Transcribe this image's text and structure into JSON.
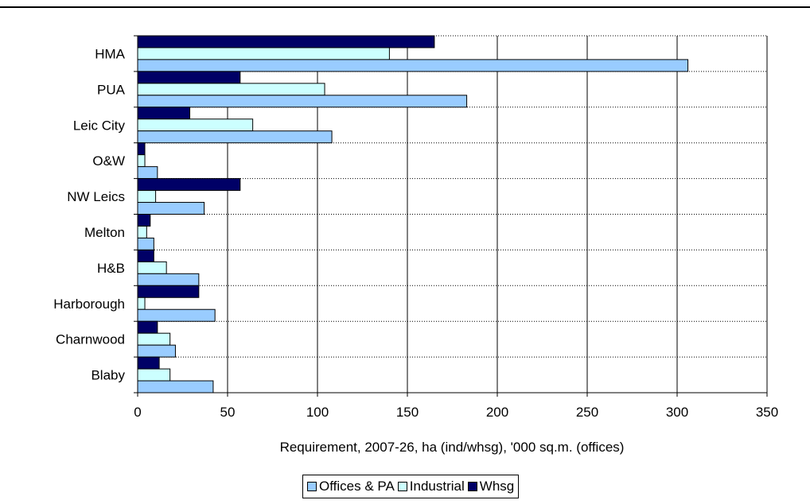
{
  "chart_data": {
    "type": "bar",
    "orientation": "horizontal",
    "categories": [
      "HMA",
      "PUA",
      "Leic City",
      "O&W",
      "NW Leics",
      "Melton",
      "H&B",
      "Harborough",
      "Charnwood",
      "Blaby"
    ],
    "series": [
      {
        "name": "Whsg",
        "color": "#000066",
        "values": [
          165,
          57,
          29,
          4,
          57,
          7,
          9,
          34,
          11,
          12
        ]
      },
      {
        "name": "Industrial",
        "color": "#ccffff",
        "values": [
          140,
          104,
          64,
          4,
          10,
          5,
          16,
          4,
          18,
          18
        ]
      },
      {
        "name": "Offices & PA",
        "color": "#99ccff",
        "values": [
          306,
          183,
          108,
          11,
          37,
          9,
          34,
          43,
          21,
          42
        ]
      }
    ],
    "legend_order": [
      "Offices & PA",
      "Industrial",
      "Whsg"
    ],
    "xlabel": "Requirement, 2007-26, ha (ind/whsg), '000 sq.m. (offices)",
    "ylabel": "",
    "xlim": [
      0,
      350
    ],
    "xticks": [
      0,
      50,
      100,
      150,
      200,
      250,
      300,
      350
    ],
    "grid": "horizontal dotted between categories, vertical solid at ticks",
    "legend_position": "bottom"
  }
}
